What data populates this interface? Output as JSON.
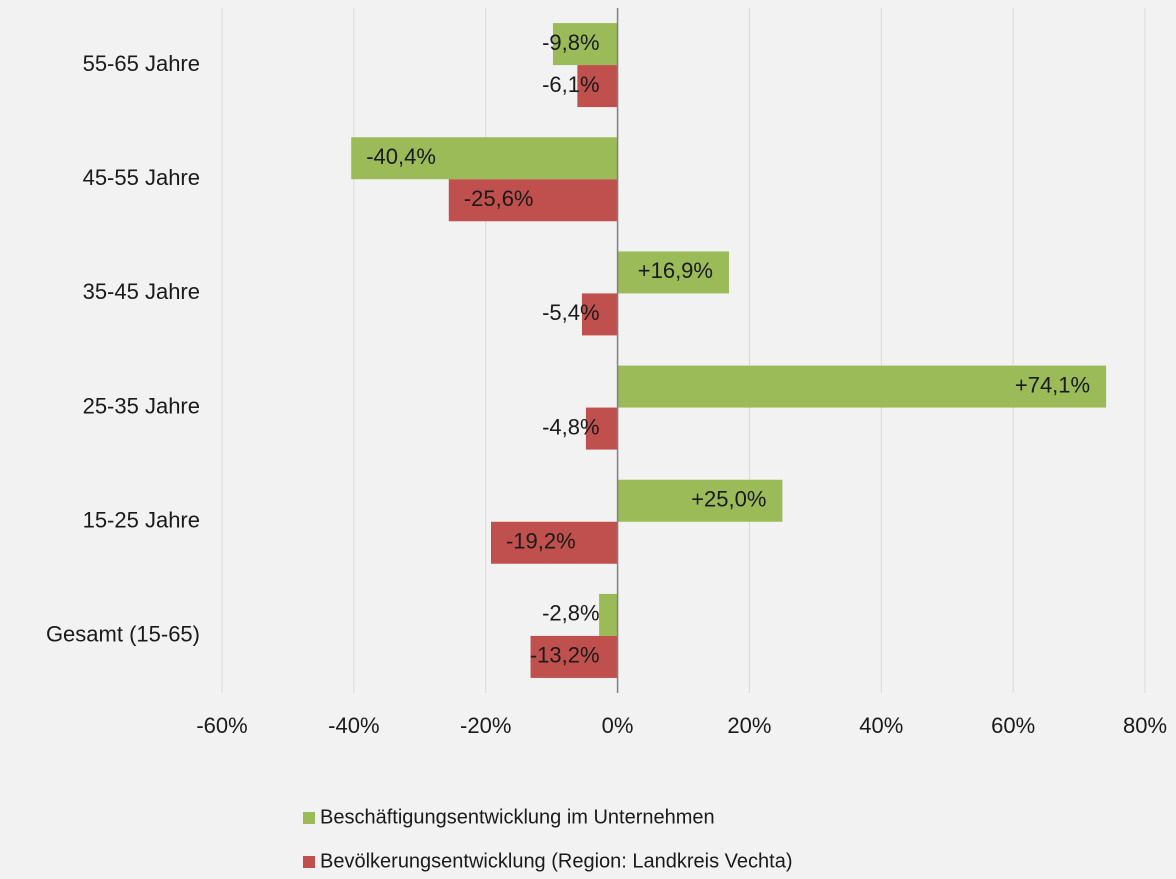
{
  "chart_data": {
    "type": "barh",
    "categories": [
      "55-65 Jahre",
      "45-55 Jahre",
      "35-45 Jahre",
      "25-35 Jahre",
      "15-25 Jahre",
      "Gesamt (15-65)"
    ],
    "series": [
      {
        "name": "Beschäftigungsentwicklung im Unternehmen",
        "color": "#9bbb59",
        "values": [
          -9.8,
          -40.4,
          16.9,
          74.1,
          25.0,
          -2.8
        ],
        "value_labels": [
          "-9,8%",
          "-40,4%",
          "+16,9%",
          "+74,1%",
          "+25,0%",
          "-2,8%"
        ]
      },
      {
        "name": "Bevölkerungsentwicklung (Region: Landkreis Vechta)",
        "color": "#c0504d",
        "values": [
          -6.1,
          -25.6,
          -5.4,
          -4.8,
          -19.2,
          -13.2
        ],
        "value_labels": [
          "-6,1%",
          "-25,6%",
          "-5,4%",
          "-4,8%",
          "-19,2%",
          "-13,2%"
        ]
      }
    ],
    "xlim": [
      -60,
      80
    ],
    "xticks": [
      {
        "value": -60,
        "label": "-60%"
      },
      {
        "value": -40,
        "label": "-40%"
      },
      {
        "value": -20,
        "label": "-20%"
      },
      {
        "value": 0,
        "label": "0%"
      },
      {
        "value": 20,
        "label": "20%"
      },
      {
        "value": 40,
        "label": "40%"
      },
      {
        "value": 60,
        "label": "60%"
      },
      {
        "value": 80,
        "label": "80%"
      }
    ],
    "grid": true
  }
}
